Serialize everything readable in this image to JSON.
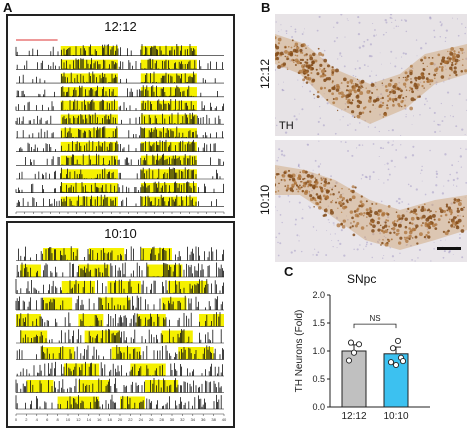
{
  "panels": {
    "a": {
      "letter": "A"
    },
    "b": {
      "letter": "B",
      "top_label": "12:12",
      "bottom_label": "10:10",
      "stain": "TH"
    },
    "c": {
      "letter": "C"
    }
  },
  "actograms": [
    {
      "title": "12:12",
      "x_ticks": [
        "0",
        "2",
        "4",
        "6",
        "8",
        "10",
        "12",
        "14",
        "16",
        "18",
        "20",
        "22",
        "24",
        "26",
        "28",
        "30",
        "32",
        "34",
        "36",
        "38",
        "40",
        "42",
        "44",
        "46",
        "48"
      ],
      "light_color": "#f5f000",
      "activity_color": "#111111"
    },
    {
      "title": "10:10",
      "x_ticks": [
        "0",
        "2",
        "4",
        "6",
        "8",
        "10",
        "12",
        "14",
        "16",
        "18",
        "20",
        "22",
        "24",
        "26",
        "28",
        "30",
        "32",
        "34",
        "36",
        "38",
        "40"
      ],
      "light_color": "#f5f000",
      "activity_color": "#111111"
    }
  ],
  "chart_data": {
    "type": "bar",
    "title": "SNpc",
    "ylabel": "TH Neurons (Fold)",
    "categories": [
      "12:12",
      "10:10"
    ],
    "values": [
      1.0,
      0.95
    ],
    "errors": [
      0.11,
      0.12
    ],
    "colors": [
      "#c0c0c0",
      "#3cc1f0"
    ],
    "points": [
      [
        0.83,
        0.97,
        1.12,
        1.15
      ],
      [
        0.8,
        0.75,
        0.88,
        1.05,
        1.18,
        0.82
      ]
    ],
    "ylim": [
      0,
      2.0
    ],
    "yticks": [
      "0.0",
      "0.5",
      "1.0",
      "1.5",
      "2.0"
    ],
    "annotation": "NS"
  }
}
